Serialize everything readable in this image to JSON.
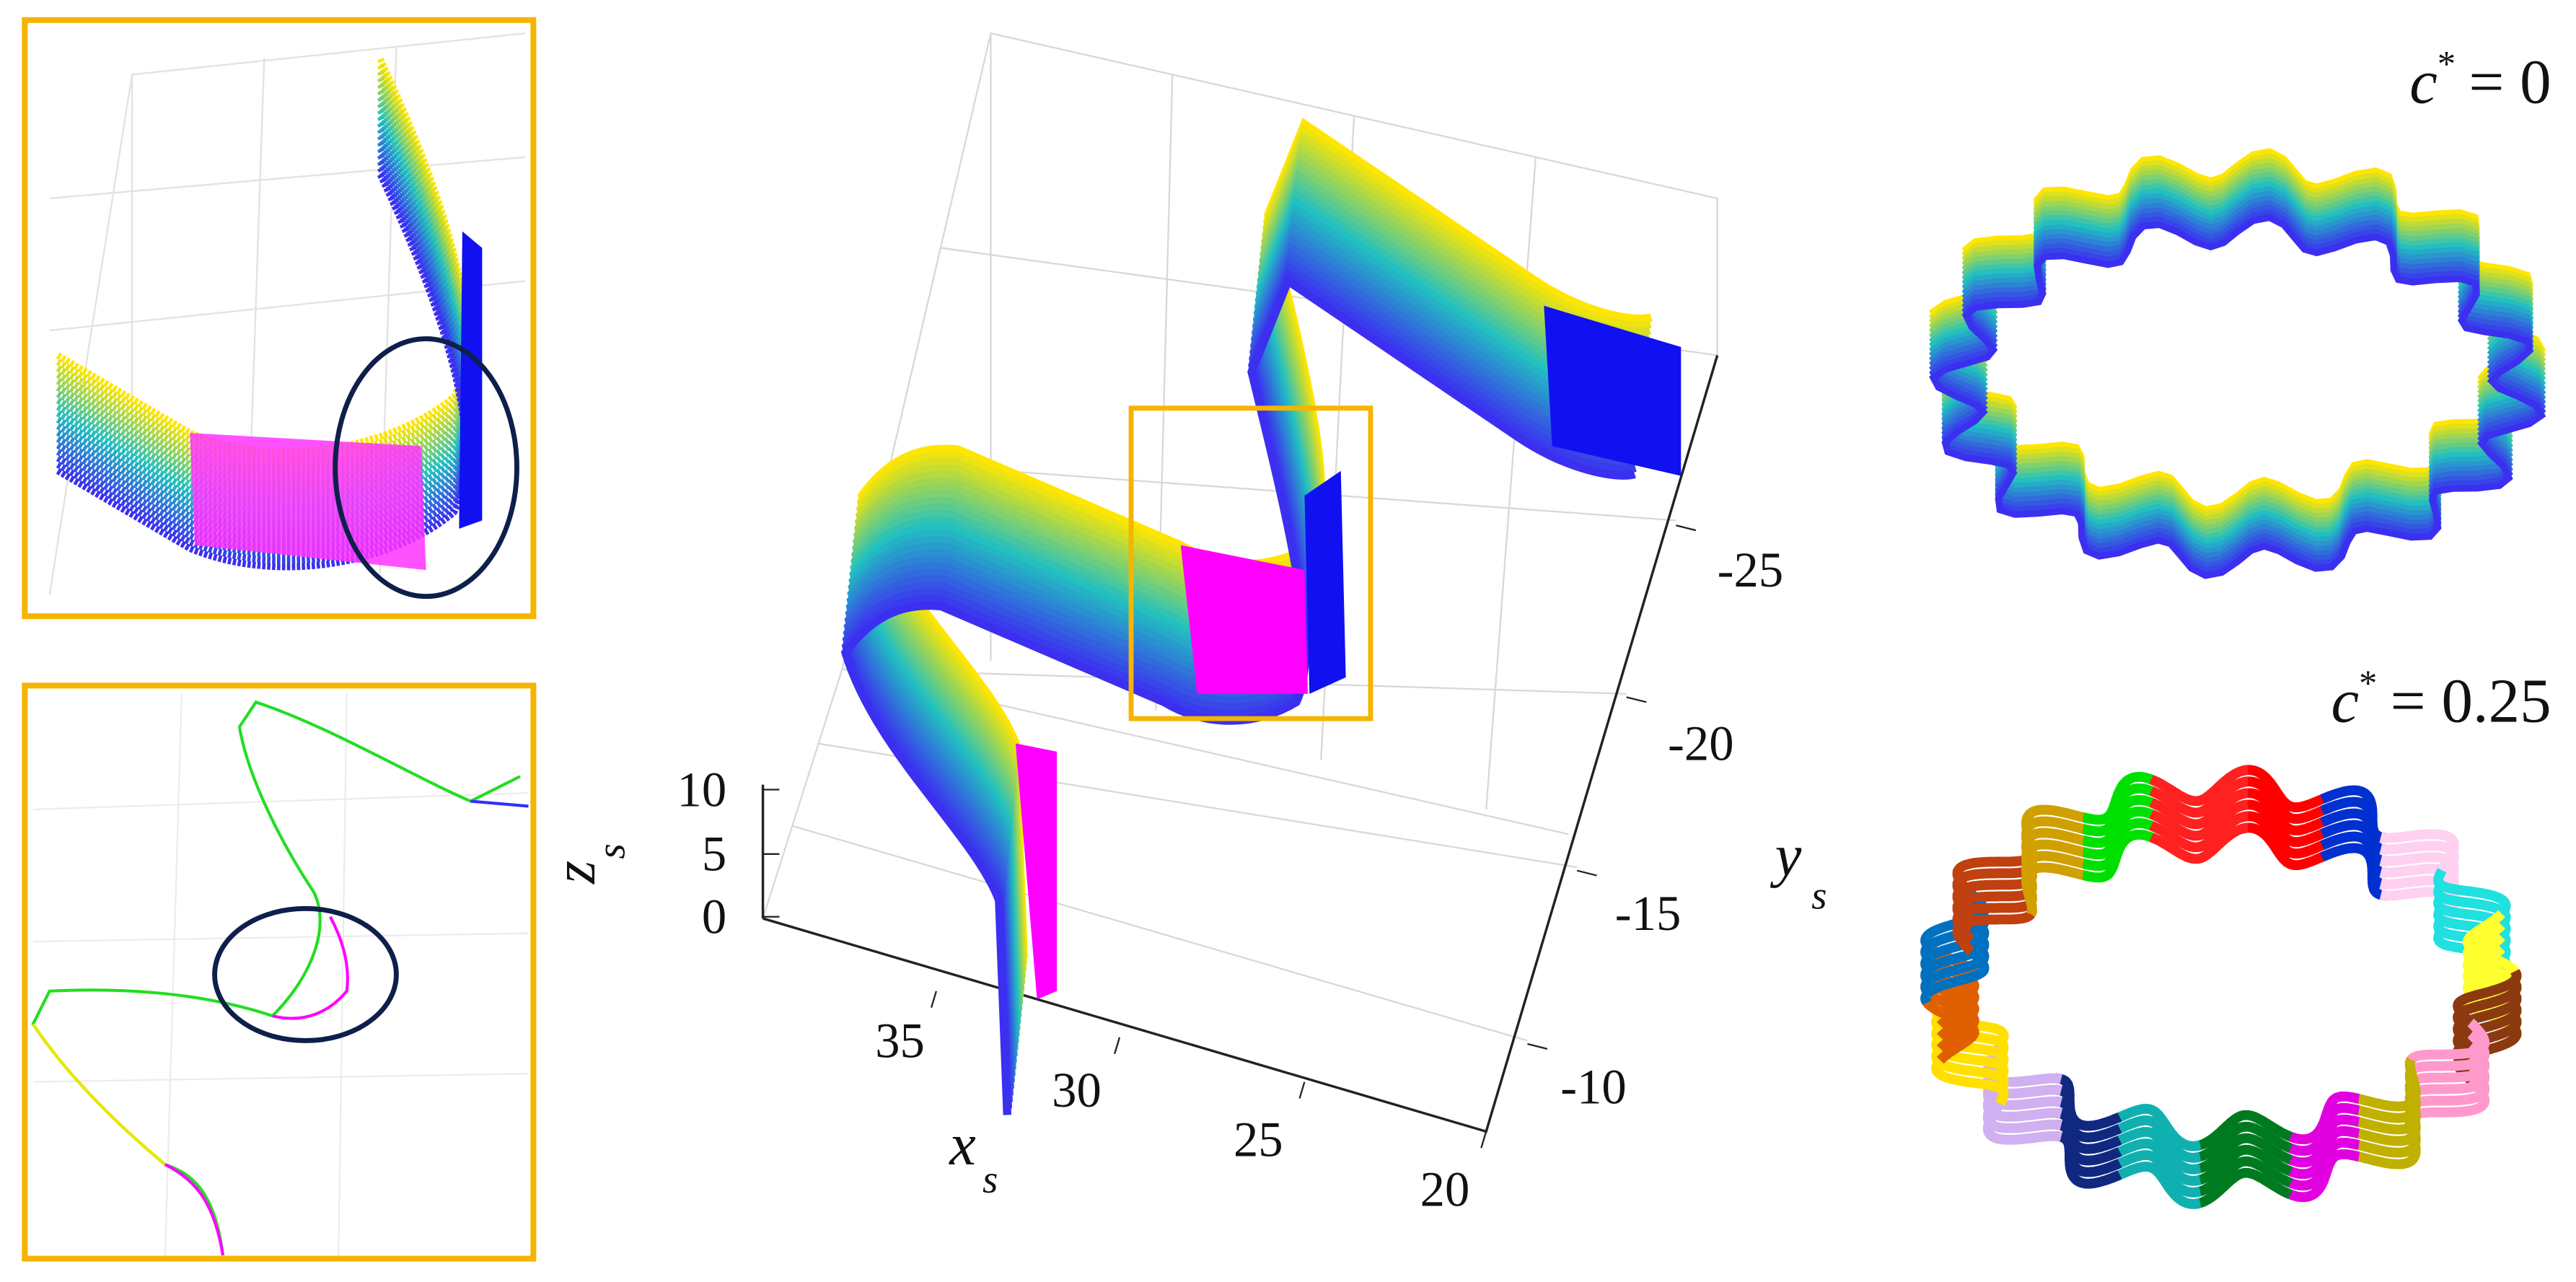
{
  "main_plot": {
    "x_label": "x",
    "x_label_sub": "s",
    "y_label": "y",
    "y_label_sub": "s",
    "z_label": "z",
    "z_label_sub": "s",
    "x_ticks": [
      35,
      30,
      25,
      20
    ],
    "y_ticks": [
      -25,
      -20,
      -15,
      -10
    ],
    "z_ticks": [
      10,
      5,
      0
    ]
  },
  "annotations": [
    {
      "symbol": "c",
      "sup": "*",
      "text": "= 0"
    },
    {
      "symbol": "c",
      "sup": "*",
      "text": "= 0.25"
    }
  ]
}
